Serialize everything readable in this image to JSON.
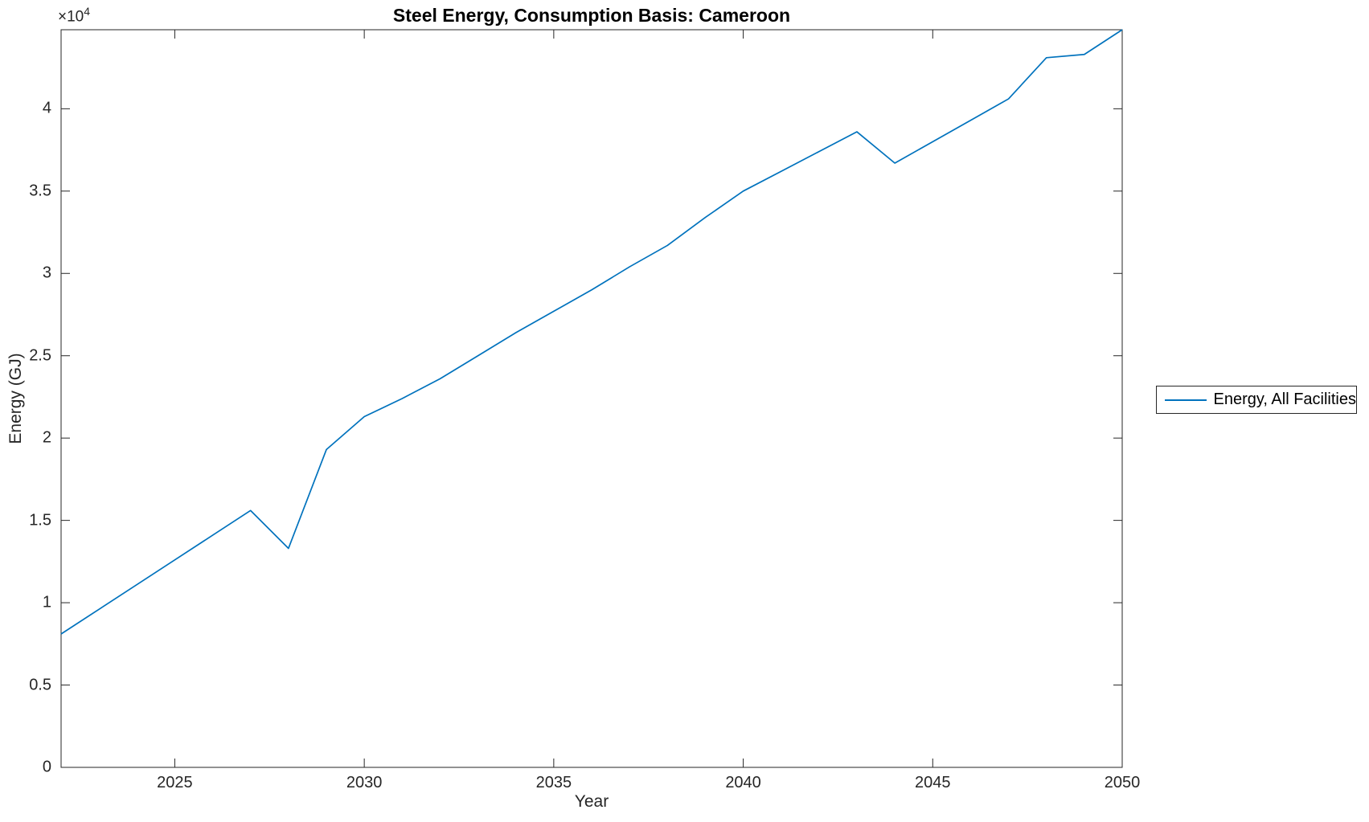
{
  "chart_data": {
    "type": "line",
    "title": "Steel Energy, Consumption Basis: Cameroon",
    "xlabel": "Year",
    "ylabel": "Energy (GJ)",
    "y_axis_offset_base": "×10",
    "y_axis_offset_exponent": "4",
    "xlim": [
      2022,
      2050
    ],
    "ylim": [
      0,
      44800
    ],
    "grid": "off",
    "legend_position": "right-outside",
    "x_ticks": {
      "values": [
        2025,
        2030,
        2035,
        2040,
        2045,
        2050
      ],
      "labels": [
        "2025",
        "2030",
        "2035",
        "2040",
        "2045",
        "2050"
      ]
    },
    "y_ticks": {
      "values": [
        0,
        5000,
        10000,
        15000,
        20000,
        25000,
        30000,
        35000,
        40000
      ],
      "labels": [
        "0",
        "0.5",
        "1",
        "1.5",
        "2",
        "2.5",
        "3",
        "3.5",
        "4"
      ]
    },
    "series": [
      {
        "name": "Energy, All Facilities",
        "color": "#0072BD",
        "x": [
          2022,
          2023,
          2024,
          2025,
          2026,
          2027,
          2028,
          2029,
          2030,
          2031,
          2032,
          2033,
          2034,
          2035,
          2036,
          2037,
          2038,
          2039,
          2040,
          2041,
          2042,
          2043,
          2044,
          2045,
          2046,
          2047,
          2048,
          2049,
          2050
        ],
        "y": [
          8100,
          9600,
          11100,
          12600,
          14100,
          15600,
          13300,
          19300,
          21300,
          22400,
          23600,
          25000,
          26400,
          27700,
          29000,
          30400,
          31700,
          33400,
          35000,
          36200,
          37400,
          38600,
          36700,
          38000,
          39300,
          40600,
          43100,
          43300,
          44800
        ]
      }
    ]
  },
  "legend": {
    "entries": [
      {
        "label": "Energy, All Facilities",
        "color": "#0072BD"
      }
    ]
  },
  "style_colors": {
    "axis": "#262626",
    "title_text": "#000000"
  }
}
